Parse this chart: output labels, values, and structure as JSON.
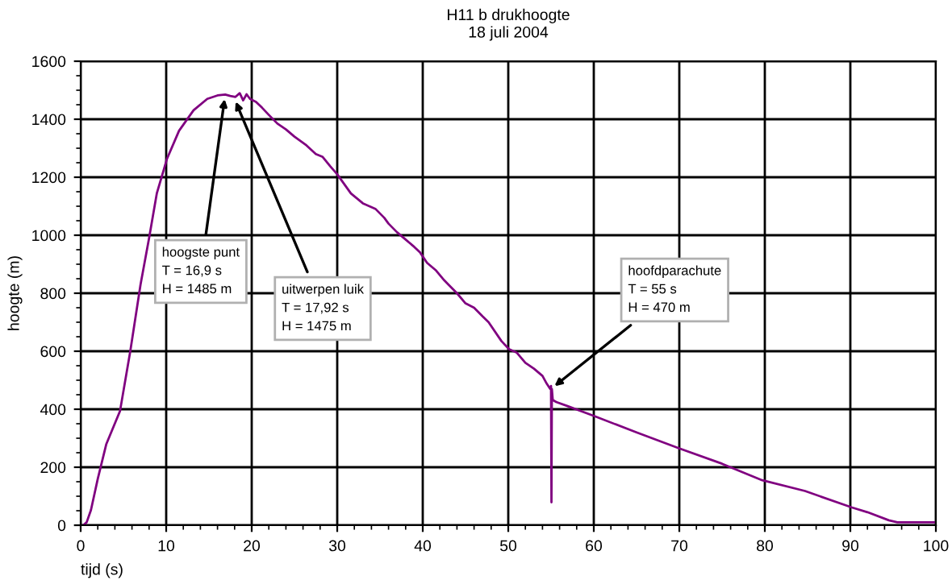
{
  "chart_data": {
    "type": "line",
    "title": "H11 b drukhoogte",
    "subtitle": "18 juli 2004",
    "xlabel": "tijd (s)",
    "ylabel": "hoogte (m)",
    "series": [
      {
        "color": "#800080",
        "x": [
          0.3,
          0.7,
          1.2,
          2.0,
          3.0,
          4.6,
          5.8,
          7.0,
          8.0,
          8.9,
          10.1,
          11.5,
          13.2,
          14.8,
          16.0,
          16.9,
          17.5,
          18.1,
          18.6,
          19.0,
          19.4,
          19.8,
          20.5,
          21.2,
          22.0,
          23.0,
          24.0,
          25.0,
          26.4,
          27.5,
          28.3,
          29.2,
          30.0,
          31.6,
          33.0,
          34.5,
          35.5,
          36.0,
          37.0,
          38.0,
          39.0,
          39.7,
          40.5,
          41.5,
          42.5,
          43.0,
          44.0,
          45.0,
          46.0,
          47.0,
          47.7,
          49.2,
          50.1,
          51.0,
          52.0,
          53.0,
          54.0,
          54.5,
          54.9,
          55.0,
          55.05,
          55.1,
          55.2,
          55.6,
          57.0,
          60.0,
          65.0,
          69.9,
          75.0,
          79.7,
          84.7,
          90.2,
          92.0,
          94.5,
          95.5,
          97.0,
          99.8
        ],
        "values": [
          0,
          10,
          52,
          160,
          280,
          394,
          600,
          830,
          990,
          1144,
          1264,
          1360,
          1431,
          1470,
          1482,
          1485,
          1480,
          1477,
          1490,
          1465,
          1486,
          1470,
          1460,
          1440,
          1415,
          1385,
          1365,
          1340,
          1310,
          1280,
          1270,
          1237,
          1210,
          1144,
          1110,
          1090,
          1060,
          1040,
          1010,
          985,
          960,
          940,
          905,
          880,
          845,
          830,
          800,
          765,
          750,
          720,
          700,
          635,
          607,
          595,
          560,
          540,
          515,
          488,
          470,
          480,
          79,
          470,
          432,
          425,
          410,
          377,
          320,
          266,
          212,
          155,
          118,
          61,
          45,
          17,
          10,
          10,
          10
        ]
      }
    ],
    "annotations": [
      {
        "text": "hoogste punt\nT = 16,9 s\nH = 1485 m",
        "x": 16.9,
        "y": 1485
      },
      {
        "text": "uitwerpen luik\nT = 17,92 s\nH = 1475 m",
        "x": 17.92,
        "y": 1475
      },
      {
        "text": "hoofdparachute\nT = 55 s\nH = 470 m",
        "x": 55,
        "y": 470
      }
    ],
    "xlim": [
      0,
      100
    ],
    "ylim": [
      0,
      1600
    ],
    "xticks": [
      0,
      10,
      20,
      30,
      40,
      50,
      60,
      70,
      80,
      90,
      100
    ],
    "yticks": [
      0,
      200,
      400,
      600,
      800,
      1000,
      1200,
      1400,
      1600
    ],
    "grid": true,
    "marker": "none",
    "line_style": "solid",
    "legend": false
  }
}
